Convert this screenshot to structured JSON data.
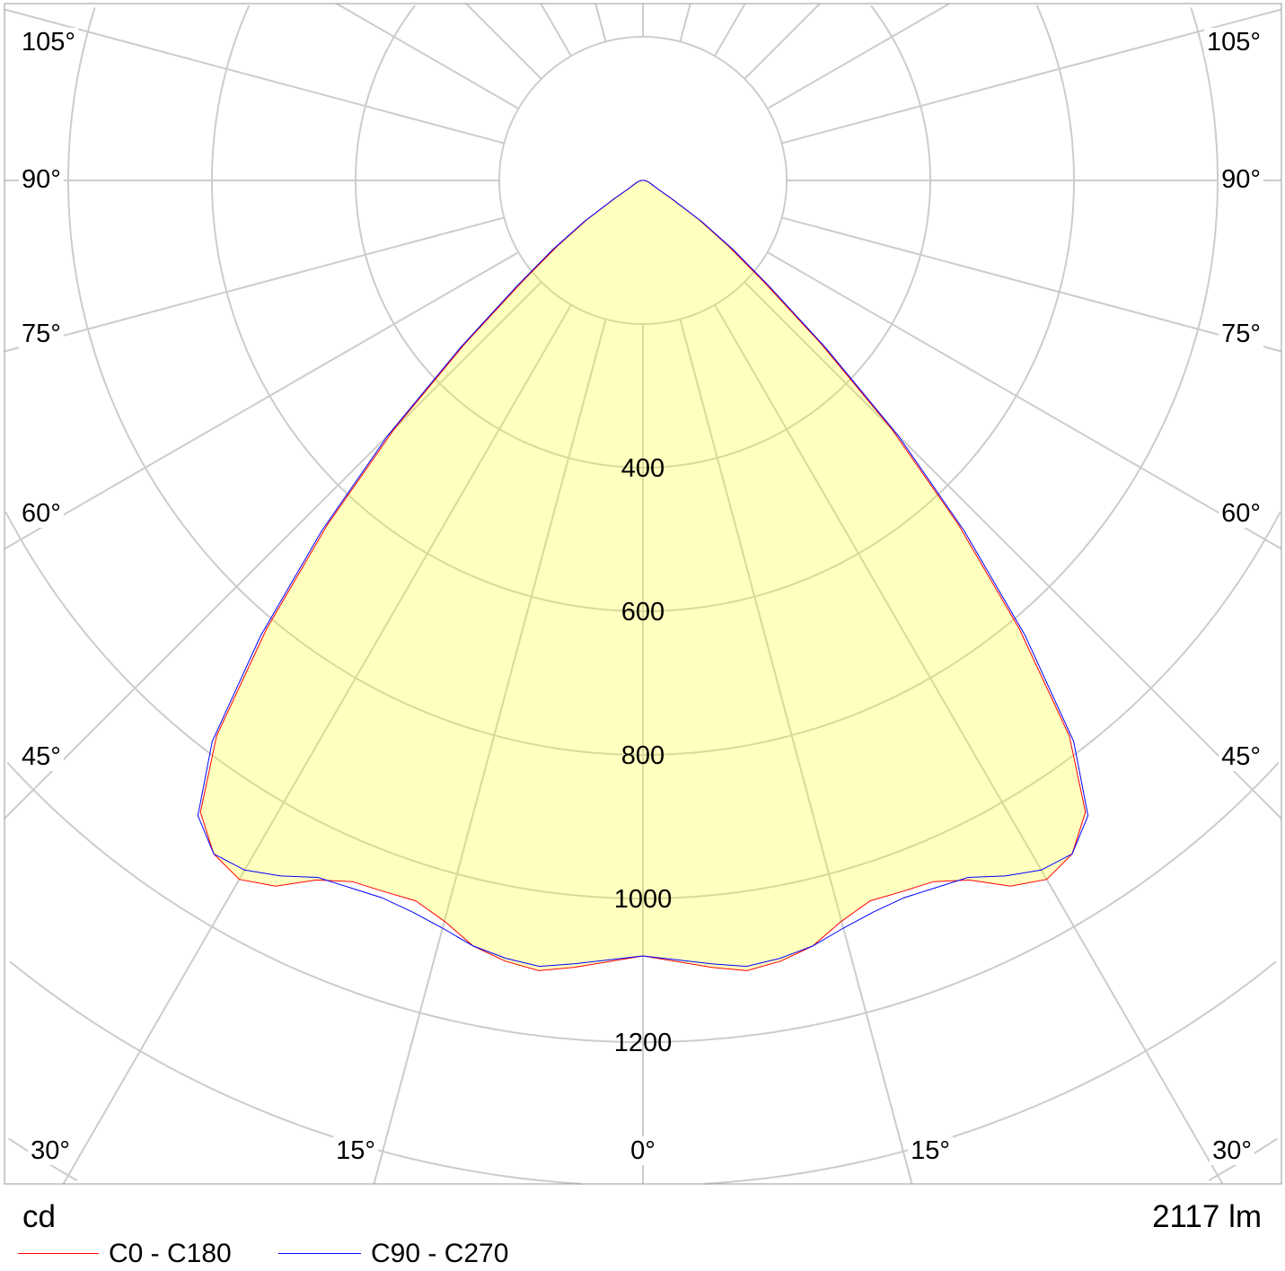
{
  "chart_data": {
    "type": "polar",
    "unit": "cd",
    "flux": "2117 lm",
    "radial_max": 1800,
    "radial_ticks": [
      200,
      400,
      600,
      800,
      1000,
      1200,
      1400,
      1600,
      1800
    ],
    "radial_labels": [
      "400",
      "600",
      "800",
      "1000",
      "1200"
    ],
    "radial_label_values": [
      400,
      600,
      800,
      1000,
      1200
    ],
    "angle_step": 15,
    "angle_labels_bottom": [
      {
        "text": "30°",
        "side": "left"
      },
      {
        "text": "15°",
        "side": "left"
      },
      {
        "text": "0°",
        "side": "center"
      },
      {
        "text": "15°",
        "side": "right"
      },
      {
        "text": "30°",
        "side": "right"
      }
    ],
    "angle_labels_side": [
      "45°",
      "60°",
      "75°",
      "90°",
      "105°"
    ],
    "fill_color": "#ffff00",
    "grid_color": "#cccccc",
    "symmetric": true,
    "series": [
      {
        "name": "C0 - C180",
        "color": "#ff0000",
        "gamma": [
          0,
          5,
          7.5,
          10,
          12.5,
          15,
          17.5,
          20,
          22.5,
          25,
          27.5,
          30,
          32.5,
          35,
          37.5,
          40,
          42.5,
          45,
          47.5,
          50,
          52.5,
          55,
          57.5,
          60,
          65,
          70,
          75,
          80,
          85,
          90
        ],
        "cd": [
          1080,
          1100,
          1110,
          1104,
          1092,
          1068,
          1052,
          1054,
          1057,
          1075,
          1108,
          1124,
          1112,
          1074,
          975,
          815,
          650,
          490,
          335,
          220,
          150,
          95,
          45,
          24,
          14,
          10,
          7,
          5,
          3,
          1
        ]
      },
      {
        "name": "C90 - C270",
        "color": "#0000ff",
        "gamma": [
          0,
          5,
          7.5,
          10,
          12.5,
          15,
          17.5,
          20,
          22.5,
          25,
          27.5,
          30,
          32.5,
          35,
          37.5,
          40,
          42.5,
          45,
          47.5,
          50,
          52.5,
          55,
          57.5,
          60,
          65,
          70,
          75,
          80,
          85,
          90
        ],
        "cd": [
          1080,
          1095,
          1104,
          1100,
          1092,
          1078,
          1068,
          1063,
          1066,
          1071,
          1092,
          1109,
          1112,
          1080,
          985,
          828,
          662,
          502,
          345,
          230,
          158,
          100,
          48,
          25,
          14,
          10,
          7,
          5,
          3,
          1
        ]
      }
    ]
  }
}
